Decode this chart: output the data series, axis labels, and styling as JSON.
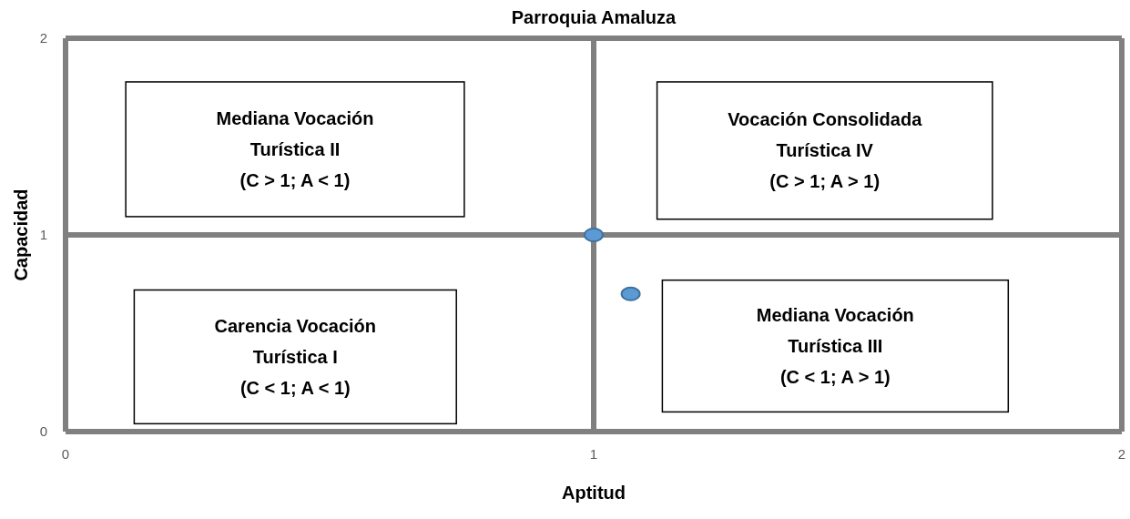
{
  "chart_data": {
    "type": "scatter",
    "title": "Parroquia Amaluza",
    "xlabel": "Aptitud",
    "ylabel": "Capacidad",
    "x": [
      1,
      1.07
    ],
    "series": [
      {
        "color": "#5b9bd5",
        "values": [
          1,
          0.7
        ]
      }
    ],
    "xlim": [
      0,
      2
    ],
    "ylim": [
      0,
      2
    ],
    "xticks": [
      0,
      1,
      2
    ],
    "yticks": [
      0,
      1,
      2
    ],
    "grid": true,
    "marker": "circle",
    "annotations": [
      "Mediana Vocación\nTurística II\n(C > 1; A < 1)",
      "Vocación Consolidada\nTurística IV\n(C > 1; A > 1)",
      "Carencia Vocación\nTurística I\n(C < 1; A < 1)",
      "Mediana Vocación\nTurística III\n(C < 1; A > 1)"
    ]
  }
}
